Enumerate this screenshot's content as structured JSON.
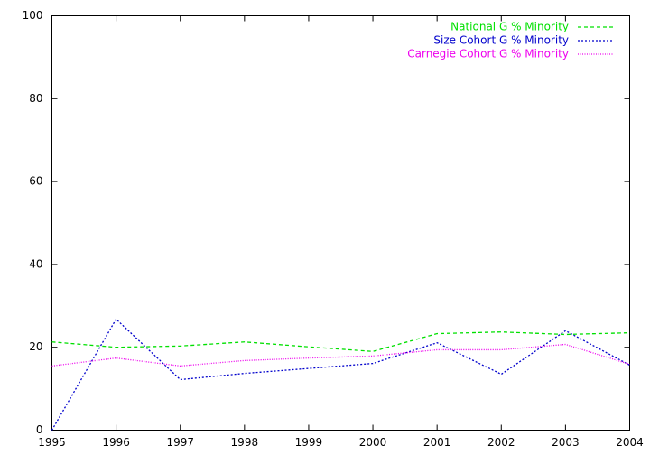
{
  "chart_data": {
    "type": "line",
    "x": [
      1995,
      1996,
      1997,
      1998,
      1999,
      2000,
      2001,
      2002,
      2003,
      2004
    ],
    "series": [
      {
        "name": "National G % Minority",
        "color": "#00e000",
        "values": [
          21.3,
          20.0,
          20.3,
          21.3,
          20.1,
          19.0,
          23.3,
          23.7,
          23.1,
          23.5
        ]
      },
      {
        "name": "Size Cohort G % Minority",
        "color": "#0000cc",
        "values": [
          0,
          26.8,
          12.2,
          13.7,
          14.9,
          16.1,
          21.1,
          13.5,
          24.0,
          15.7
        ]
      },
      {
        "name": "Carnegie Cohort G % Minority",
        "color": "#ee00ee",
        "values": [
          15.5,
          17.4,
          15.5,
          16.8,
          17.4,
          17.9,
          19.4,
          19.4,
          20.7,
          15.9
        ]
      }
    ],
    "xlim": [
      1995,
      2004
    ],
    "xticks": [
      1995,
      1996,
      1997,
      1998,
      1999,
      2000,
      2001,
      2002,
      2003,
      2004
    ],
    "ylim": [
      0,
      100
    ],
    "yticks": [
      0,
      20,
      40,
      60,
      80,
      100
    ],
    "grid": false,
    "legend": "top-right"
  }
}
